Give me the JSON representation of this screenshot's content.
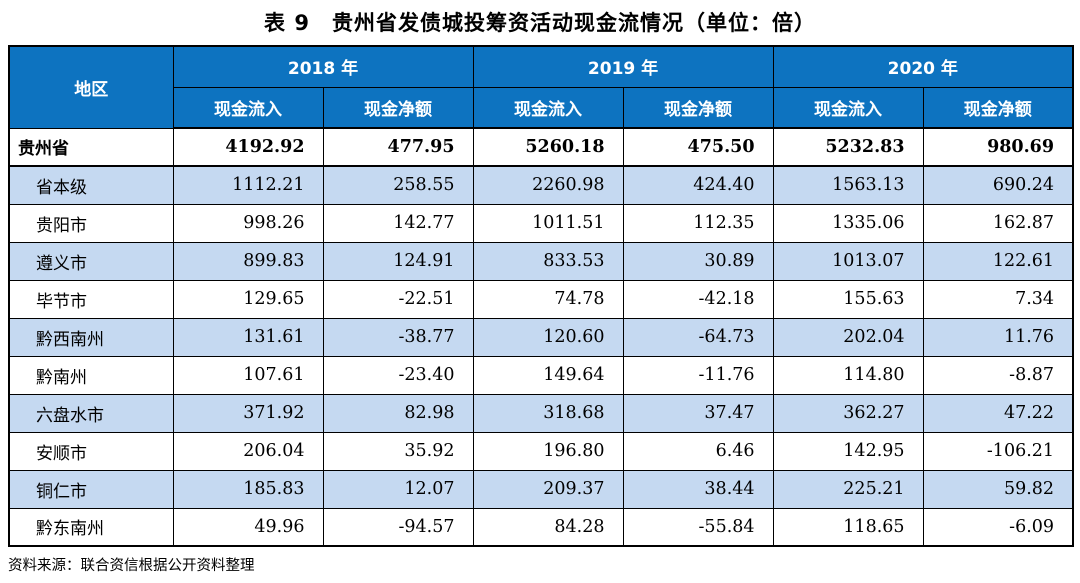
{
  "title": "表 9　贵州省发债城投筹资活动现金流情况（单位：倍）",
  "table": {
    "region_header": "地区",
    "year_groups": [
      {
        "label": "2018 年",
        "sub": [
          "现金流入",
          "现金净额"
        ]
      },
      {
        "label": "2019 年",
        "sub": [
          "现金流入",
          "现金净额"
        ]
      },
      {
        "label": "2020 年",
        "sub": [
          "现金流入",
          "现金净额"
        ]
      }
    ],
    "rows": [
      {
        "region": "贵州省",
        "total": true,
        "values": [
          "4192.92",
          "477.95",
          "5260.18",
          "475.50",
          "5232.83",
          "980.69"
        ]
      },
      {
        "region": "省本级",
        "total": false,
        "values": [
          "1112.21",
          "258.55",
          "2260.98",
          "424.40",
          "1563.13",
          "690.24"
        ]
      },
      {
        "region": "贵阳市",
        "total": false,
        "values": [
          "998.26",
          "142.77",
          "1011.51",
          "112.35",
          "1335.06",
          "162.87"
        ]
      },
      {
        "region": "遵义市",
        "total": false,
        "values": [
          "899.83",
          "124.91",
          "833.53",
          "30.89",
          "1013.07",
          "122.61"
        ]
      },
      {
        "region": "毕节市",
        "total": false,
        "values": [
          "129.65",
          "-22.51",
          "74.78",
          "-42.18",
          "155.63",
          "7.34"
        ]
      },
      {
        "region": "黔西南州",
        "total": false,
        "values": [
          "131.61",
          "-38.77",
          "120.60",
          "-64.73",
          "202.04",
          "11.76"
        ]
      },
      {
        "region": "黔南州",
        "total": false,
        "values": [
          "107.61",
          "-23.40",
          "149.64",
          "-11.76",
          "114.80",
          "-8.87"
        ]
      },
      {
        "region": "六盘水市",
        "total": false,
        "values": [
          "371.92",
          "82.98",
          "318.68",
          "37.47",
          "362.27",
          "47.22"
        ]
      },
      {
        "region": "安顺市",
        "total": false,
        "values": [
          "206.04",
          "35.92",
          "196.80",
          "6.46",
          "142.95",
          "-106.21"
        ]
      },
      {
        "region": "铜仁市",
        "total": false,
        "values": [
          "185.83",
          "12.07",
          "209.37",
          "38.44",
          "225.21",
          "59.82"
        ]
      },
      {
        "region": "黔东南州",
        "total": false,
        "values": [
          "49.96",
          "-94.57",
          "84.28",
          "-55.84",
          "118.65",
          "-6.09"
        ]
      }
    ]
  },
  "source_note": "资料来源：联合资信根据公开资料整理",
  "colors": {
    "header_bg": "#0d73c0",
    "header_text": "#ffffff",
    "alt_row_bg": "#c5d9f1",
    "border": "#000000"
  }
}
